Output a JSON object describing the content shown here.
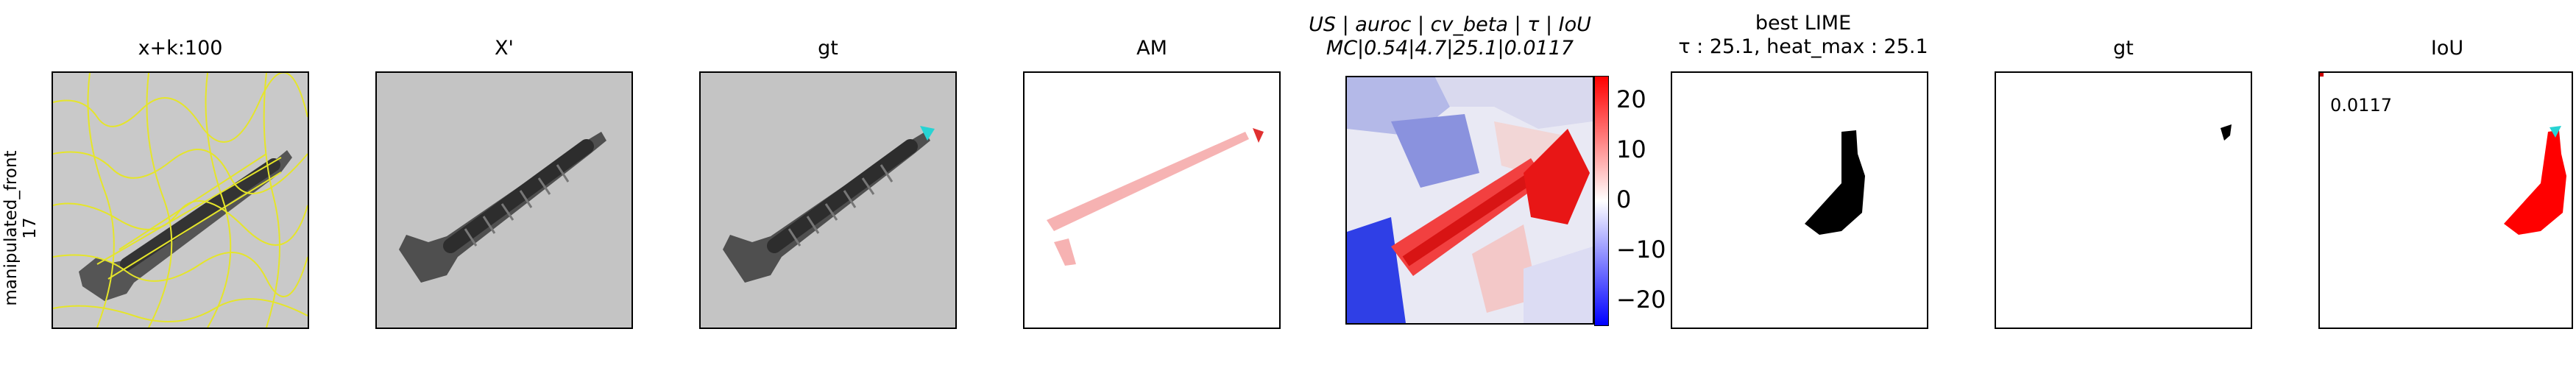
{
  "row": {
    "label_line1": "manipulated_front",
    "label_line2": "17"
  },
  "panels": [
    {
      "title": "x+k:100"
    },
    {
      "title": "X'"
    },
    {
      "title": "gt"
    },
    {
      "title": "AM"
    },
    {
      "title_line1": "US | auroc | cv_beta | τ | IoU",
      "title_line2": "MC|0.54|4.7|25.1|0.0117"
    },
    {
      "title_line1": "best LIME",
      "title_line2": "τ : 25.1, heat_max : 25.1"
    },
    {
      "title": "gt"
    },
    {
      "title": "IoU"
    }
  ],
  "colorbar": {
    "ticks": [
      "20",
      "10",
      "0",
      "−10",
      "−20"
    ]
  },
  "iou_value": "0.0117",
  "colors": {
    "highlight": "#ff0000",
    "boundary": "#e5e52a",
    "gt_marker": "#27d3d3"
  }
}
